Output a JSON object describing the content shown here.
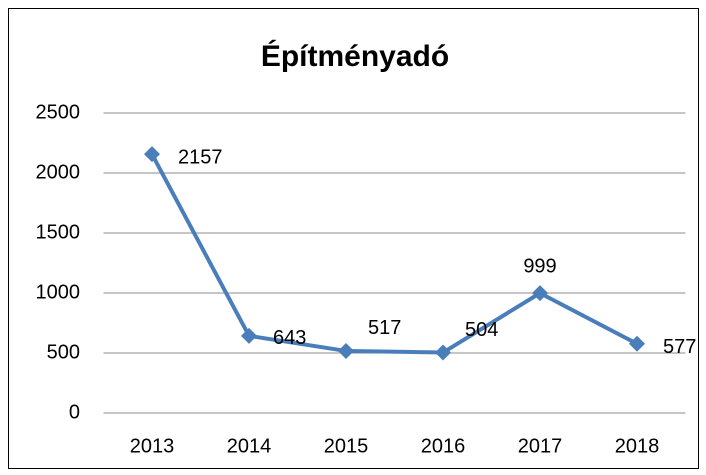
{
  "chart_data": {
    "type": "line",
    "title": "Építményadó",
    "categories": [
      "2013",
      "2014",
      "2015",
      "2016",
      "2017",
      "2018"
    ],
    "series": [
      {
        "name": "Építményadó",
        "color": "#4a7ebb",
        "values": [
          2157,
          643,
          517,
          504,
          999,
          577
        ]
      }
    ],
    "ylim": [
      0,
      2500
    ],
    "yticks": [
      0,
      500,
      1000,
      1500,
      2000,
      2500
    ],
    "grid": true,
    "legend": false
  }
}
